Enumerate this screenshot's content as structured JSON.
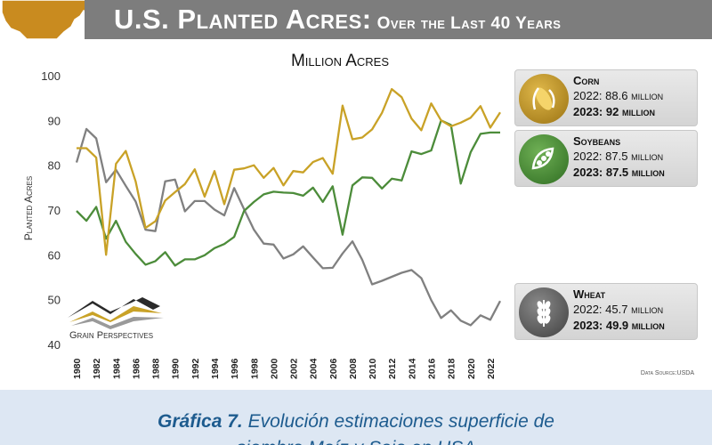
{
  "header": {
    "title_main": "U.S. Planted Acres:",
    "title_sub": "Over the Last 40 Years"
  },
  "logo": {
    "text": "Grain Perspectives"
  },
  "source": "Data Source:USDA",
  "colors": {
    "corn": "#c9a227",
    "soybeans": "#4c8c3a",
    "wheat": "#808080",
    "banner": "#7d7d7d",
    "caption": "#1d5b8e"
  },
  "legend_boxes": [
    {
      "name": "Corn",
      "icon": "corn-icon",
      "line_2022": "2022: 88.6",
      "line_2023": "2023: 92",
      "unit": "million"
    },
    {
      "name": "Soybeans",
      "icon": "soybean-icon",
      "line_2022": "2022: 87.5",
      "line_2023": "2023: 87.5",
      "unit": "million"
    },
    {
      "name": "Wheat",
      "icon": "wheat-icon",
      "line_2022": "2022: 45.7",
      "line_2023": "2023: 49.9",
      "unit": "million"
    }
  ],
  "caption": {
    "label": "Gráfica 7.",
    "text": " Evolución estimaciones superficie de",
    "line2": "siembra Maíz y Soja en USA"
  },
  "chart_data": {
    "type": "line",
    "title": "Million Acres",
    "ylabel": "Planted Acres",
    "xlabel": "",
    "ylim": [
      40,
      100
    ],
    "yticks": [
      40,
      50,
      60,
      70,
      80,
      90,
      100
    ],
    "x": [
      1980,
      1981,
      1982,
      1983,
      1984,
      1985,
      1986,
      1987,
      1988,
      1989,
      1990,
      1991,
      1992,
      1993,
      1994,
      1995,
      1996,
      1997,
      1998,
      1999,
      2000,
      2001,
      2002,
      2003,
      2004,
      2005,
      2006,
      2007,
      2008,
      2009,
      2010,
      2011,
      2012,
      2013,
      2014,
      2015,
      2016,
      2017,
      2018,
      2019,
      2020,
      2021,
      2022,
      2023
    ],
    "xtick_labels": [
      "1980",
      "1982",
      "1984",
      "1986",
      "1988",
      "1990",
      "1992",
      "1994",
      "1996",
      "1998",
      "2000",
      "2002",
      "2004",
      "2006",
      "2008",
      "2010",
      "2012",
      "2014",
      "2016",
      "2018",
      "2020",
      "2022"
    ],
    "grid": false,
    "series": [
      {
        "name": "Corn",
        "values": [
          84.0,
          84.0,
          81.9,
          60.2,
          80.5,
          83.4,
          76.6,
          66.2,
          67.7,
          72.3,
          74.2,
          76.0,
          79.3,
          73.2,
          78.9,
          71.5,
          79.2,
          79.5,
          80.2,
          77.4,
          79.6,
          75.7,
          78.9,
          78.6,
          80.9,
          81.8,
          78.3,
          93.5,
          86.0,
          86.4,
          88.2,
          91.9,
          97.2,
          95.4,
          90.6,
          88.0,
          94.0,
          90.2,
          88.9,
          89.7,
          90.8,
          93.4,
          88.6,
          92.0
        ]
      },
      {
        "name": "Soybeans",
        "values": [
          70.0,
          67.8,
          70.9,
          63.8,
          67.8,
          63.1,
          60.4,
          58.0,
          58.8,
          60.8,
          57.8,
          59.2,
          59.2,
          60.1,
          61.7,
          62.6,
          64.2,
          70.0,
          72.0,
          73.7,
          74.3,
          74.1,
          74.0,
          73.4,
          75.2,
          72.0,
          75.5,
          64.7,
          75.7,
          77.5,
          77.4,
          75.0,
          77.2,
          76.8,
          83.3,
          82.7,
          83.5,
          90.2,
          89.2,
          76.1,
          83.1,
          87.2,
          87.5,
          87.5
        ]
      },
      {
        "name": "Wheat",
        "values": [
          80.8,
          88.3,
          86.2,
          76.4,
          79.2,
          75.6,
          72.1,
          65.8,
          65.5,
          76.6,
          77.0,
          69.9,
          72.2,
          72.2,
          70.3,
          69.0,
          75.1,
          70.4,
          65.8,
          62.7,
          62.5,
          59.4,
          60.3,
          62.1,
          59.6,
          57.2,
          57.3,
          60.5,
          63.2,
          59.1,
          53.6,
          54.4,
          55.3,
          56.2,
          56.8,
          55.0,
          50.1,
          46.1,
          47.8,
          45.5,
          44.5,
          46.7,
          45.7,
          49.9
        ]
      }
    ]
  }
}
